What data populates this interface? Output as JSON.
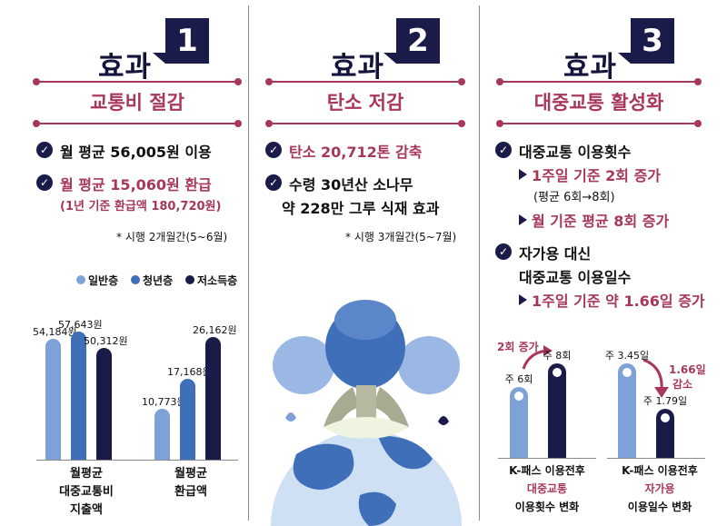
{
  "colors": {
    "navy": "#1b1b4a",
    "mid_blue": "#3f6fb8",
    "light_blue": "#7ea2d8",
    "accent": "#a8375e"
  },
  "col1": {
    "header": "효과",
    "num": "1",
    "sub": "교통비 절감",
    "item1": "월 평균 56,005원 이용",
    "item2": "월 평균 15,060원 환급",
    "item2_sub": "(1년 기준 환급액 180,720원)",
    "note": "* 시행 2개월간(5~6월)",
    "legend": [
      "일반층",
      "청년층",
      "저소득층"
    ],
    "chart_data": [
      {
        "type": "bar",
        "categories": [
          "일반층",
          "청년층",
          "저소득층"
        ],
        "values": [
          54184,
          57643,
          50312
        ],
        "labels": [
          "54,184원",
          "57,643원",
          "50,312원"
        ],
        "caption": [
          "월평균",
          "대중교통비",
          "지출액"
        ]
      },
      {
        "type": "bar",
        "categories": [
          "일반층",
          "청년층",
          "저소득층"
        ],
        "values": [
          10773,
          17168,
          26162
        ],
        "labels": [
          "10,773원",
          "17,168원",
          "26,162원"
        ],
        "caption": [
          "월평균",
          "환급액"
        ]
      }
    ]
  },
  "col2": {
    "header": "효과",
    "num": "2",
    "sub": "탄소 저감",
    "item1": "탄소 20,712톤 감축",
    "item2_l1": "수령 30년산 소나무",
    "item2_l2": "약 228만 그루 식재 효과",
    "note": "* 시행 3개월간(5~7월)",
    "icons": [
      "earth-icon",
      "tree-icon"
    ]
  },
  "col3": {
    "header": "효과",
    "num": "3",
    "sub": "대중교통 활성화",
    "item1": "대중교통 이용횟수",
    "bul1": "1주일 기준 2회 증가",
    "bul1_sub": "(평균 6회→8회)",
    "bul2": "월 기준 평균 8회 증가",
    "item2_l1": "자가용 대신",
    "item2_l2": "대중교통 이용일수",
    "bul3": "1주일 기준 약 1.66일 증가",
    "chart_data": [
      {
        "type": "bar",
        "categories": [
          "K-패스 이용전",
          "K-패스 이용후"
        ],
        "values": [
          6,
          8
        ],
        "labels": [
          "주 6회",
          "주 8회"
        ],
        "annotation": "2회 증가",
        "caption_l1a": "K-패스 이용전후",
        "caption_l2": "대중교통",
        "caption_l3": "이용횟수 변화"
      },
      {
        "type": "bar",
        "categories": [
          "K-패스 이용전",
          "K-패스 이용후"
        ],
        "values": [
          3.45,
          1.79
        ],
        "labels": [
          "주 3.45일",
          "주 1.79일"
        ],
        "annotation_l1": "1.66일",
        "annotation_l2": "감소",
        "caption_l1a": "K-패스 이용전후",
        "caption_l2": "자가용",
        "caption_l3": "이용일수 변화"
      }
    ]
  }
}
